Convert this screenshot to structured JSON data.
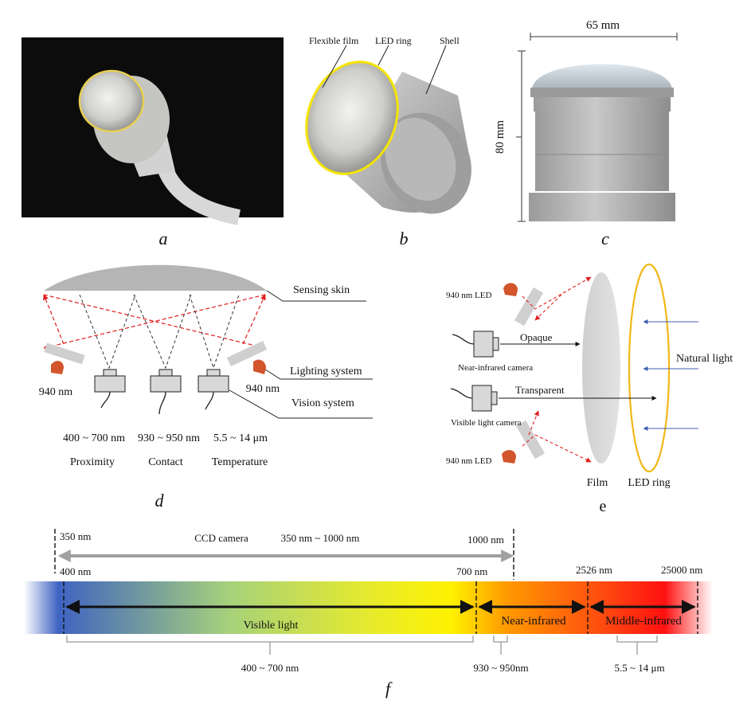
{
  "panels": {
    "a": {
      "label": "a"
    },
    "b": {
      "label": "b",
      "callouts": [
        "Flexible film",
        "LED ring",
        "Shell"
      ]
    },
    "c": {
      "label": "c",
      "width": "65 mm",
      "height": "80 mm"
    },
    "d": {
      "label": "d",
      "callouts": [
        "Sensing skin",
        "Lighting  system",
        "Vision system"
      ],
      "led_left": "940 nm",
      "led_right": "940 nm",
      "bands": [
        "400 ~ 700 nm",
        "930 ~ 950 nm",
        "5.5 ~ 14 μm"
      ],
      "modes": [
        "Proximity",
        "Contact",
        "Temperature"
      ]
    },
    "e": {
      "label": "e",
      "led_top": "940 nm LED",
      "led_bottom": "940 nm LED",
      "nir_camera": "Near-infrared camera",
      "vis_camera": "Visible light camera",
      "opaque": "Opaque",
      "transparent": "Transparent",
      "natural_light": "Natural light",
      "film": "Film",
      "led_ring": "LED ring"
    },
    "f": {
      "label": "f",
      "ccd_left": "350 nm",
      "ccd_title": "CCD camera",
      "ccd_range": "350 nm ~ 1000 nm",
      "ccd_right": "1000 nm",
      "marks": [
        "400 nm",
        "700 nm",
        "2526 nm",
        "25000 nm"
      ],
      "regions": [
        "Visible light",
        "Near-infrared",
        "Middle-infrared"
      ],
      "brackets": [
        "400 ~ 700 nm",
        "930 ~ 950nm",
        "5.5 ~ 14 μm"
      ]
    }
  },
  "colors": {
    "led_yellow": "#f2c21a",
    "led_red": "#d2552b",
    "dashed_red": "#e02020",
    "natural_blue": "#3d5fb0",
    "spectrum": [
      "#3f63c2",
      "#e6ea2e",
      "#fff200",
      "#ff8a00",
      "#ff1a1a"
    ]
  }
}
